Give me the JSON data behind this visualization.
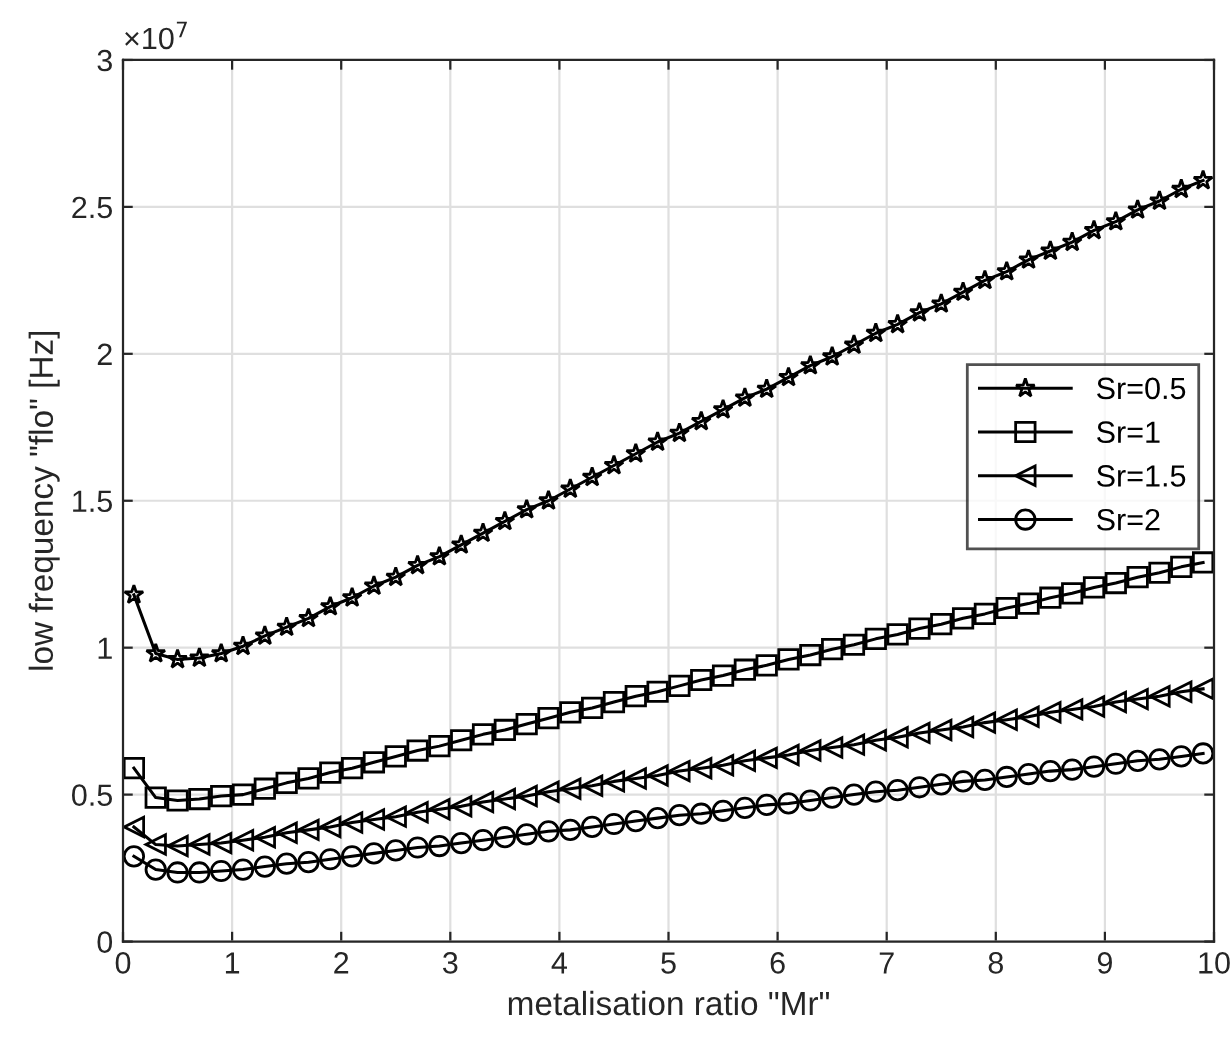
{
  "chart_data": {
    "type": "line",
    "xlabel": "metalisation ratio \"Mr\"",
    "ylabel": "low frequency \"flo\" [Hz]",
    "annotations": [
      "×10$^{7}$"
    ],
    "x": [
      0.1,
      0.3,
      0.5,
      0.7,
      0.9,
      1.1,
      1.3,
      1.5,
      1.7,
      1.9,
      2.1,
      2.3,
      2.5,
      2.7,
      2.9,
      3.1,
      3.3,
      3.5,
      3.7,
      3.9,
      4.1,
      4.3,
      4.5,
      4.7,
      4.9,
      5.1,
      5.3,
      5.5,
      5.7,
      5.9,
      6.1,
      6.3,
      6.5,
      6.7,
      6.9,
      7.1,
      7.3,
      7.5,
      7.7,
      7.9,
      8.1,
      8.3,
      8.5,
      8.7,
      8.9,
      9.1,
      9.3,
      9.5,
      9.7,
      9.9
    ],
    "series": [
      {
        "name": "Sr=0.5",
        "color": "#000000",
        "marker": "star",
        "values": [
          1.18,
          0.98,
          0.96,
          0.965,
          0.98,
          1.005,
          1.04,
          1.07,
          1.1,
          1.14,
          1.17,
          1.21,
          1.24,
          1.28,
          1.31,
          1.35,
          1.39,
          1.43,
          1.47,
          1.5,
          1.54,
          1.58,
          1.62,
          1.66,
          1.7,
          1.73,
          1.77,
          1.81,
          1.85,
          1.88,
          1.92,
          1.96,
          1.99,
          2.03,
          2.07,
          2.1,
          2.14,
          2.17,
          2.21,
          2.25,
          2.28,
          2.32,
          2.35,
          2.38,
          2.42,
          2.45,
          2.49,
          2.52,
          2.56,
          2.59
        ]
      },
      {
        "name": "Sr=1",
        "color": "#000000",
        "marker": "square",
        "values": [
          0.59,
          0.49,
          0.48,
          0.485,
          0.495,
          0.5,
          0.52,
          0.54,
          0.555,
          0.575,
          0.59,
          0.61,
          0.63,
          0.65,
          0.665,
          0.685,
          0.705,
          0.72,
          0.74,
          0.76,
          0.78,
          0.795,
          0.815,
          0.835,
          0.85,
          0.87,
          0.89,
          0.905,
          0.925,
          0.94,
          0.96,
          0.975,
          0.995,
          1.01,
          1.03,
          1.045,
          1.065,
          1.08,
          1.1,
          1.115,
          1.135,
          1.15,
          1.17,
          1.185,
          1.205,
          1.22,
          1.24,
          1.255,
          1.275,
          1.29
        ]
      },
      {
        "name": "Sr=1.5",
        "color": "#000000",
        "marker": "triangle",
        "values": [
          0.39,
          0.33,
          0.325,
          0.33,
          0.335,
          0.345,
          0.355,
          0.37,
          0.38,
          0.39,
          0.405,
          0.415,
          0.425,
          0.44,
          0.45,
          0.46,
          0.475,
          0.485,
          0.495,
          0.51,
          0.52,
          0.53,
          0.545,
          0.555,
          0.565,
          0.58,
          0.59,
          0.6,
          0.615,
          0.625,
          0.635,
          0.65,
          0.66,
          0.67,
          0.685,
          0.695,
          0.71,
          0.72,
          0.73,
          0.745,
          0.755,
          0.765,
          0.78,
          0.79,
          0.8,
          0.815,
          0.825,
          0.835,
          0.85,
          0.86
        ]
      },
      {
        "name": "Sr=2",
        "color": "#000000",
        "marker": "circle",
        "values": [
          0.29,
          0.245,
          0.235,
          0.235,
          0.24,
          0.245,
          0.255,
          0.265,
          0.27,
          0.28,
          0.29,
          0.3,
          0.31,
          0.32,
          0.325,
          0.335,
          0.345,
          0.355,
          0.365,
          0.375,
          0.38,
          0.39,
          0.4,
          0.41,
          0.42,
          0.43,
          0.435,
          0.445,
          0.455,
          0.465,
          0.47,
          0.48,
          0.49,
          0.5,
          0.51,
          0.515,
          0.525,
          0.535,
          0.545,
          0.55,
          0.56,
          0.57,
          0.58,
          0.585,
          0.595,
          0.605,
          0.615,
          0.62,
          0.63,
          0.64
        ]
      }
    ],
    "xlim": [
      0,
      10
    ],
    "xticks": [
      0,
      1,
      2,
      3,
      4,
      5,
      6,
      7,
      8,
      9,
      10
    ],
    "ylim": [
      0,
      3
    ],
    "yticks": [
      0,
      0.5,
      1,
      1.5,
      2,
      2.5,
      3
    ],
    "grid": true,
    "legend": "right",
    "line_style": "solid"
  }
}
